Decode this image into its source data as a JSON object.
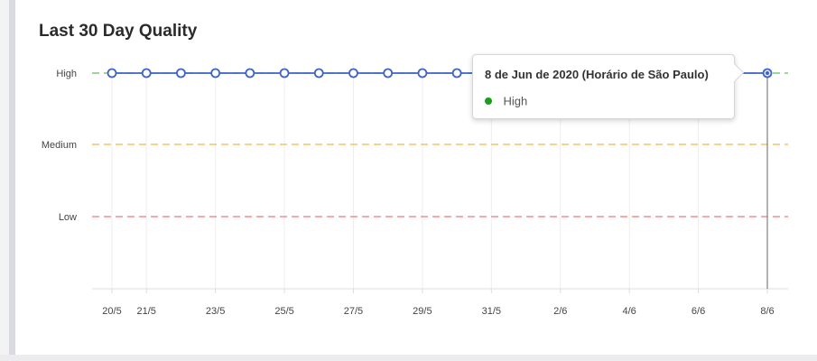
{
  "card": {
    "title": "Last 30 Day Quality"
  },
  "chart_data": {
    "type": "line",
    "title": "Last 30 Day Quality",
    "y_levels": [
      "Low",
      "Medium",
      "High"
    ],
    "x_ticks": [
      "20/5",
      "21/5",
      "23/5",
      "25/5",
      "27/5",
      "29/5",
      "31/5",
      "2/6",
      "4/6",
      "6/6",
      "8/6"
    ],
    "threshold_colors": {
      "High": "#7fc97f",
      "Medium": "#f5c26b",
      "Low": "#ef8f8f"
    },
    "series": [
      {
        "color": "#3f63c9",
        "points": [
          {
            "x": "2020-05-20",
            "y": "High"
          },
          {
            "x": "2020-05-21",
            "y": "High"
          },
          {
            "x": "2020-05-22",
            "y": "High"
          },
          {
            "x": "2020-05-23",
            "y": "High"
          },
          {
            "x": "2020-05-24",
            "y": "High"
          },
          {
            "x": "2020-05-25",
            "y": "High"
          },
          {
            "x": "2020-05-26",
            "y": "High"
          },
          {
            "x": "2020-05-27",
            "y": "High"
          },
          {
            "x": "2020-05-28",
            "y": "High"
          },
          {
            "x": "2020-05-29",
            "y": "High"
          },
          {
            "x": "2020-05-30",
            "y": "High"
          },
          {
            "x": "2020-06-08",
            "y": "High"
          }
        ]
      }
    ],
    "x_range": [
      "2020-05-20",
      "2020-06-08"
    ],
    "grid": true
  },
  "tooltip": {
    "title": "8 de Jun de 2020 (Horário de São Paulo)",
    "value_label": "High",
    "dot_color": "#19a019"
  }
}
